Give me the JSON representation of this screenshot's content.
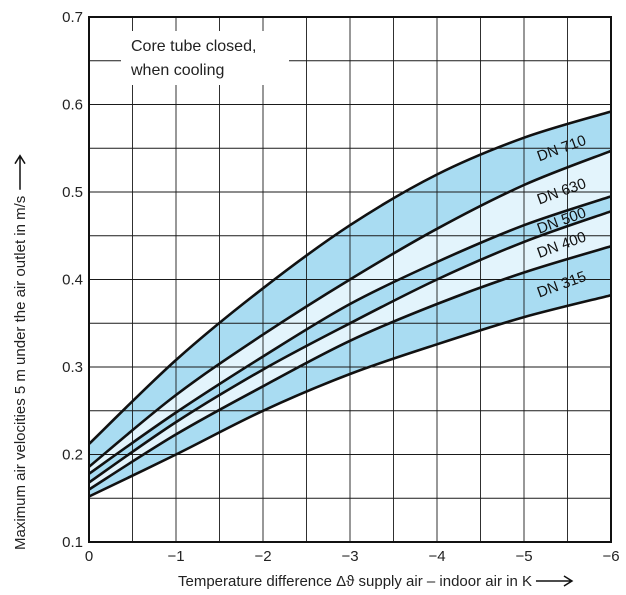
{
  "chart_data": {
    "type": "area",
    "xlabel": "Temperature difference Δϑ supply air – indoor air in K",
    "ylabel": "Maximum air velocities 5 m under the air outlet in m/s",
    "annotation": [
      "Core tube closed,",
      "when cooling"
    ],
    "xlim": [
      0,
      -6
    ],
    "ylim": [
      0.1,
      0.7
    ],
    "x_ticks": [
      "0",
      "−1",
      "−2",
      "−3",
      "−4",
      "−5",
      "−6"
    ],
    "y_ticks": [
      "0.1",
      "0.2",
      "0.3",
      "0.4",
      "0.5",
      "0.6",
      "0.7"
    ],
    "grid": true,
    "x": [
      0,
      -1,
      -2,
      -3,
      -4,
      -5,
      -6
    ],
    "series": [
      {
        "name": "DN 710",
        "lower": [
          0.186,
          0.268,
          0.337,
          0.4,
          0.458,
          0.508,
          0.547
        ],
        "upper": [
          0.212,
          0.308,
          0.39,
          0.462,
          0.52,
          0.562,
          0.592
        ],
        "color": "#a9dcf2"
      },
      {
        "name": "DN 630",
        "lower": [
          0.178,
          0.248,
          0.312,
          0.372,
          0.42,
          0.462,
          0.495
        ],
        "upper": [
          0.186,
          0.268,
          0.337,
          0.4,
          0.458,
          0.508,
          0.547
        ],
        "color": "#e3f4fc"
      },
      {
        "name": "DN 500",
        "lower": [
          0.168,
          0.237,
          0.297,
          0.35,
          0.4,
          0.443,
          0.478
        ],
        "upper": [
          0.178,
          0.248,
          0.312,
          0.372,
          0.42,
          0.462,
          0.495
        ],
        "color": "#a9dcf2"
      },
      {
        "name": "DN 400",
        "lower": [
          0.16,
          0.223,
          0.278,
          0.33,
          0.372,
          0.408,
          0.438
        ],
        "upper": [
          0.168,
          0.237,
          0.297,
          0.35,
          0.4,
          0.443,
          0.478
        ],
        "color": "#e3f4fc"
      },
      {
        "name": "DN 315",
        "lower": [
          0.152,
          0.2,
          0.25,
          0.292,
          0.326,
          0.357,
          0.382
        ],
        "upper": [
          0.16,
          0.223,
          0.278,
          0.33,
          0.372,
          0.408,
          0.438
        ],
        "color": "#a9dcf2"
      }
    ]
  }
}
